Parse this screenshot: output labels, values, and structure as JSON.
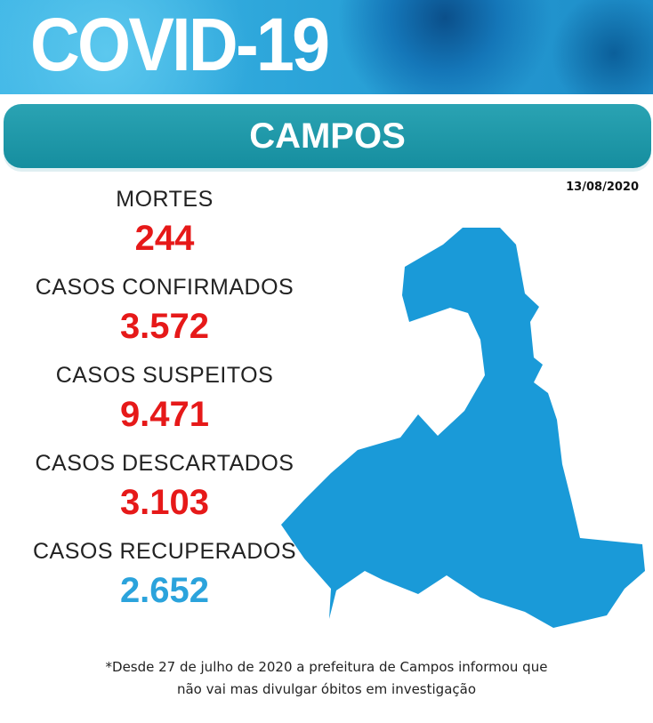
{
  "header": {
    "title": "COVID-19",
    "subtitle": "CAMPOS",
    "date": "13/08/2020"
  },
  "stats": [
    {
      "label": "MORTES",
      "value": "244"
    },
    {
      "label": "CASOS CONFIRMADOS",
      "value": "3.572"
    },
    {
      "label": "CASOS SUSPEITOS",
      "value": "9.471"
    },
    {
      "label": "CASOS DESCARTADOS",
      "value": "3.103"
    },
    {
      "label": "CASOS RECUPERADOS",
      "value": "2.652"
    }
  ],
  "footnote": [
    "*Desde 27 de julho de 2020 a prefeitura de Campos informou que",
    "não vai mas divulgar óbitos em investigação"
  ]
}
